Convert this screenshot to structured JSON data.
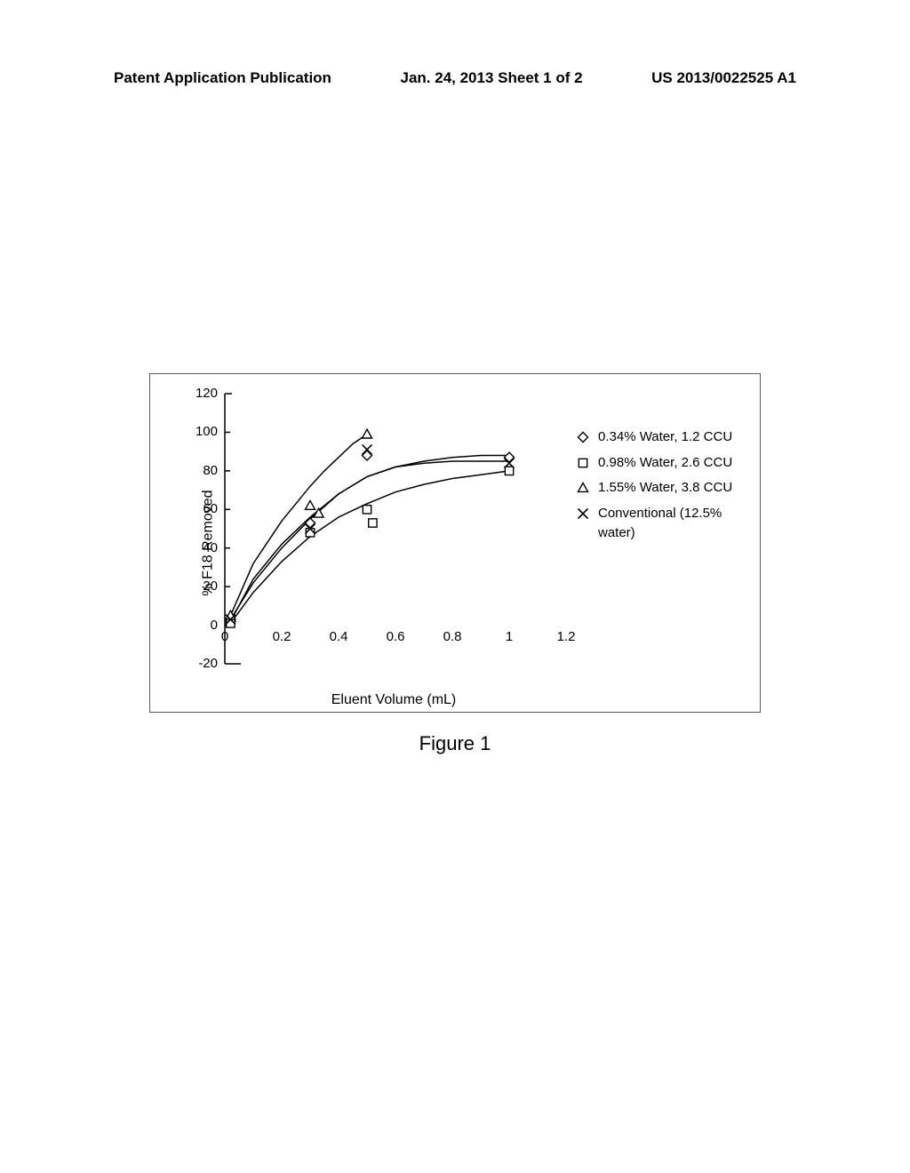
{
  "header": {
    "left": "Patent Application Publication",
    "center": "Jan. 24, 2013  Sheet 1 of 2",
    "right": "US 2013/0022525 A1"
  },
  "figure": {
    "caption": "Figure 1",
    "chart": {
      "type": "line-scatter",
      "background_color": "#ffffff",
      "border_color": "#5a5a5a",
      "axis_color": "#000000",
      "axis_width": 1.5,
      "tick_length": 6,
      "xlabel": "Eluent Volume (mL)",
      "ylabel": "% F18 Removed",
      "label_fontsize": 16,
      "tick_fontsize": 15,
      "xlim": [
        0,
        1.2
      ],
      "ylim": [
        -20,
        120
      ],
      "xticks": [
        0,
        0.2,
        0.4,
        0.6,
        0.8,
        1,
        1.2
      ],
      "yticks": [
        -20,
        0,
        20,
        40,
        60,
        80,
        100,
        120
      ],
      "legend_position": "right",
      "marker_size": 11,
      "marker_stroke": "#000000",
      "marker_fill": "#ffffff",
      "line_color": "#000000",
      "line_width": 1.5,
      "series": [
        {
          "id": "s1",
          "label": "0.34% Water, 1.2 CCU",
          "marker": "diamond",
          "points": [
            {
              "x": 0.02,
              "y": 2
            },
            {
              "x": 0.3,
              "y": 53
            },
            {
              "x": 0.5,
              "y": 88
            },
            {
              "x": 1.0,
              "y": 87
            }
          ],
          "curve": [
            {
              "x": 0.02,
              "y": 2
            },
            {
              "x": 0.1,
              "y": 24
            },
            {
              "x": 0.2,
              "y": 42
            },
            {
              "x": 0.3,
              "y": 56
            },
            {
              "x": 0.4,
              "y": 68
            },
            {
              "x": 0.5,
              "y": 77
            },
            {
              "x": 0.6,
              "y": 82
            },
            {
              "x": 0.7,
              "y": 85
            },
            {
              "x": 0.8,
              "y": 87
            },
            {
              "x": 0.9,
              "y": 88
            },
            {
              "x": 1.0,
              "y": 88
            }
          ]
        },
        {
          "id": "s2",
          "label": "0.98% Water, 2.6 CCU",
          "marker": "square",
          "points": [
            {
              "x": 0.02,
              "y": 1
            },
            {
              "x": 0.3,
              "y": 48
            },
            {
              "x": 0.5,
              "y": 60
            },
            {
              "x": 0.52,
              "y": 53
            },
            {
              "x": 1.0,
              "y": 80
            }
          ],
          "curve": [
            {
              "x": 0.02,
              "y": 1
            },
            {
              "x": 0.1,
              "y": 17
            },
            {
              "x": 0.2,
              "y": 33
            },
            {
              "x": 0.3,
              "y": 46
            },
            {
              "x": 0.4,
              "y": 56
            },
            {
              "x": 0.5,
              "y": 63
            },
            {
              "x": 0.6,
              "y": 69
            },
            {
              "x": 0.7,
              "y": 73
            },
            {
              "x": 0.8,
              "y": 76
            },
            {
              "x": 0.9,
              "y": 78
            },
            {
              "x": 1.0,
              "y": 80
            }
          ]
        },
        {
          "id": "s3",
          "label": "1.55% Water, 3.8 CCU",
          "marker": "triangle",
          "points": [
            {
              "x": 0.02,
              "y": 5
            },
            {
              "x": 0.3,
              "y": 62
            },
            {
              "x": 0.33,
              "y": 58
            },
            {
              "x": 0.5,
              "y": 99
            }
          ],
          "curve": [
            {
              "x": 0.02,
              "y": 5
            },
            {
              "x": 0.1,
              "y": 32
            },
            {
              "x": 0.2,
              "y": 54
            },
            {
              "x": 0.3,
              "y": 72
            },
            {
              "x": 0.35,
              "y": 80
            },
            {
              "x": 0.4,
              "y": 87
            },
            {
              "x": 0.45,
              "y": 94
            },
            {
              "x": 0.5,
              "y": 99
            }
          ]
        },
        {
          "id": "s4",
          "label": "Conventional (12.5% water)",
          "marker": "x",
          "points": [
            {
              "x": 0.02,
              "y": 3
            },
            {
              "x": 0.3,
              "y": 50
            },
            {
              "x": 0.5,
              "y": 91
            },
            {
              "x": 1.0,
              "y": 84
            }
          ],
          "curve": [
            {
              "x": 0.02,
              "y": 3
            },
            {
              "x": 0.1,
              "y": 22
            },
            {
              "x": 0.2,
              "y": 40
            },
            {
              "x": 0.3,
              "y": 55
            },
            {
              "x": 0.4,
              "y": 68
            },
            {
              "x": 0.5,
              "y": 77
            },
            {
              "x": 0.6,
              "y": 82
            },
            {
              "x": 0.7,
              "y": 84
            },
            {
              "x": 0.8,
              "y": 85
            },
            {
              "x": 0.9,
              "y": 85
            },
            {
              "x": 1.0,
              "y": 85
            }
          ]
        }
      ]
    }
  }
}
